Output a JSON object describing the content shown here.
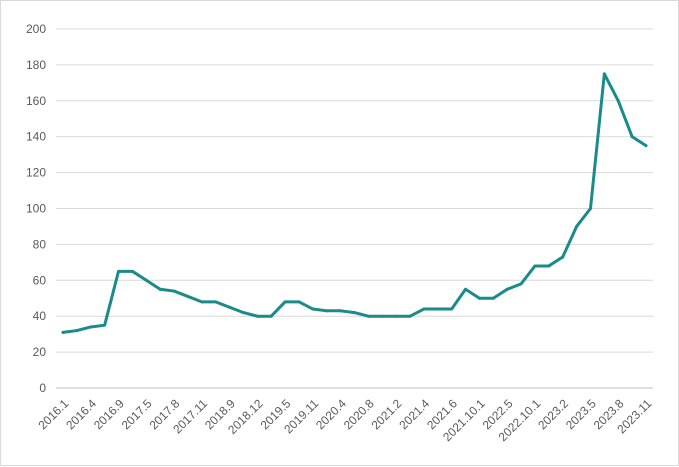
{
  "chart_data": {
    "type": "line",
    "title": "",
    "xlabel": "",
    "ylabel": "",
    "ylim": [
      0,
      200
    ],
    "yticks": [
      0,
      20,
      40,
      60,
      80,
      100,
      120,
      140,
      160,
      180,
      200
    ],
    "grid": true,
    "legend": "none",
    "line_color": "#1a8a8a",
    "categories": [
      "2016.1",
      "",
      "2016.4",
      "",
      "2016.9",
      "",
      "2017.5",
      "",
      "2017.8",
      "",
      "2017.11",
      "",
      "2018.9",
      "",
      "2018.12",
      "",
      "2019.5",
      "",
      "2019.11",
      "",
      "2020.4",
      "",
      "2020.8",
      "",
      "2021.2",
      "",
      "2021.4",
      "",
      "2021.6",
      "",
      "2021.10.1",
      "",
      "2022.5",
      "",
      "2022.10.1",
      "",
      "2023.2",
      "",
      "2023.5",
      "",
      "2023.8",
      "",
      "2023.11"
    ],
    "series": [
      {
        "values": [
          31,
          32,
          34,
          35,
          65,
          65,
          60,
          55,
          54,
          51,
          48,
          48,
          45,
          42,
          40,
          40,
          48,
          48,
          44,
          43,
          43,
          42,
          40,
          40,
          40,
          40,
          44,
          44,
          44,
          55,
          50,
          50,
          55,
          58,
          68,
          68,
          73,
          90,
          100,
          175,
          160,
          140,
          135
        ]
      }
    ]
  }
}
